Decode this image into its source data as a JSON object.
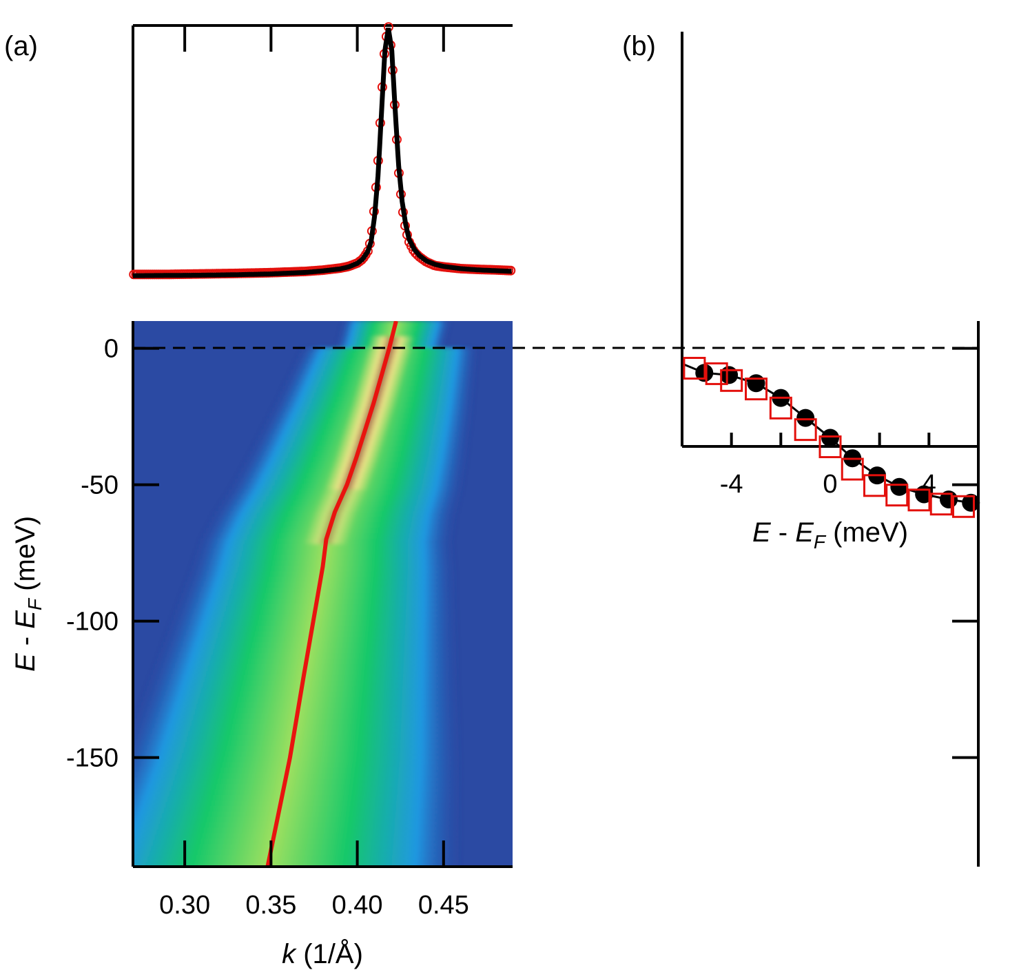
{
  "panels": {
    "a_label": "(a)",
    "b_label": "(b)"
  },
  "colors": {
    "fit_line": "#e8140f",
    "mdc_marker": "#e3100c",
    "model_curve": "#000000",
    "background_band": "#2b4aa3"
  },
  "chart_data": [
    {
      "id": "mdc",
      "type": "line",
      "description_units": "k (1/Å) vs intensity (arb.)",
      "xlim": [
        0.27,
        0.49
      ],
      "ylim": [
        0,
        1
      ],
      "series": [
        {
          "marker": "open-circle",
          "x": [
            0.27,
            0.29,
            0.31,
            0.33,
            0.35,
            0.37,
            0.38,
            0.39,
            0.395,
            0.4,
            0.403,
            0.406,
            0.408,
            0.41,
            0.412,
            0.414,
            0.416,
            0.418,
            0.42,
            0.422,
            0.424,
            0.426,
            0.428,
            0.43,
            0.433,
            0.436,
            0.44,
            0.445,
            0.45,
            0.46,
            0.47,
            0.48,
            0.49
          ],
          "y": [
            0.01,
            0.01,
            0.012,
            0.014,
            0.017,
            0.022,
            0.027,
            0.035,
            0.042,
            0.055,
            0.07,
            0.1,
            0.15,
            0.28,
            0.45,
            0.7,
            0.92,
            1.0,
            0.88,
            0.65,
            0.42,
            0.28,
            0.19,
            0.14,
            0.1,
            0.08,
            0.06,
            0.045,
            0.04,
            0.033,
            0.03,
            0.028,
            0.025
          ]
        },
        {
          "marker": "line",
          "x": [
            0.27,
            0.29,
            0.31,
            0.33,
            0.35,
            0.37,
            0.38,
            0.39,
            0.395,
            0.4,
            0.403,
            0.406,
            0.408,
            0.41,
            0.412,
            0.414,
            0.416,
            0.418,
            0.42,
            0.422,
            0.424,
            0.426,
            0.428,
            0.43,
            0.433,
            0.436,
            0.44,
            0.445,
            0.45,
            0.46,
            0.47,
            0.48,
            0.49
          ],
          "y": [
            0.005,
            0.006,
            0.007,
            0.009,
            0.012,
            0.018,
            0.024,
            0.032,
            0.04,
            0.054,
            0.07,
            0.1,
            0.14,
            0.24,
            0.4,
            0.65,
            0.9,
            0.99,
            0.9,
            0.66,
            0.44,
            0.3,
            0.21,
            0.15,
            0.11,
            0.085,
            0.064,
            0.05,
            0.042,
            0.033,
            0.028,
            0.025,
            0.022
          ]
        }
      ]
    },
    {
      "id": "map",
      "type": "heatmap",
      "xlabel": "k (1/Å)",
      "ylabel": "E - EF (meV)",
      "xlim": [
        0.27,
        0.49
      ],
      "ylim": [
        -190,
        10
      ],
      "xticks": [
        0.3,
        0.35,
        0.4,
        0.45
      ],
      "xtick_labels": [
        "0.30",
        "0.35",
        "0.40",
        "0.45"
      ],
      "yticks": [
        0,
        -50,
        -100,
        -150
      ],
      "ytick_labels": [
        "0",
        "-50",
        "-100",
        "-150"
      ],
      "fermi_level": 0,
      "dispersion": {
        "E": [
          10,
          0,
          -10,
          -20,
          -30,
          -40,
          -50,
          -60,
          -70,
          -80,
          -100,
          -120,
          -150,
          -190
        ],
        "k": [
          0.4225,
          0.4185,
          0.414,
          0.4095,
          0.4045,
          0.3995,
          0.394,
          0.387,
          0.382,
          0.38,
          0.3745,
          0.369,
          0.361,
          0.348
        ]
      }
    },
    {
      "id": "panel_b",
      "type": "scatter",
      "xlabel": "E - EF (meV)",
      "xlim": [
        -6,
        6
      ],
      "xticks": [
        -4,
        0,
        4
      ],
      "xtick_labels": [
        "-4",
        "0",
        "4"
      ],
      "series": [
        {
          "marker": "filled-circle",
          "x": [
            -5.1,
            -4.1,
            -3.0,
            -2.0,
            -1.0,
            0.0,
            0.9,
            1.9,
            2.8,
            3.8,
            4.8,
            5.7
          ],
          "y": [
            -9,
            -9.8,
            -12.8,
            -18.2,
            -25.5,
            -32.8,
            -40.3,
            -46.6,
            -50.8,
            -53.5,
            -55.4,
            -56.6
          ]
        },
        {
          "marker": "open-square",
          "x": [
            -5.5,
            -4.6,
            -4.0,
            -3.0,
            -2.0,
            -1.0,
            0.0,
            0.9,
            1.8,
            2.7,
            3.6,
            4.5,
            5.4
          ],
          "y": [
            -7.3,
            -9.3,
            -11.8,
            -14.9,
            -21.9,
            -29.8,
            -36.1,
            -44.3,
            -50.3,
            -53.8,
            -55.6,
            -57.1,
            -58.0
          ]
        }
      ]
    }
  ]
}
